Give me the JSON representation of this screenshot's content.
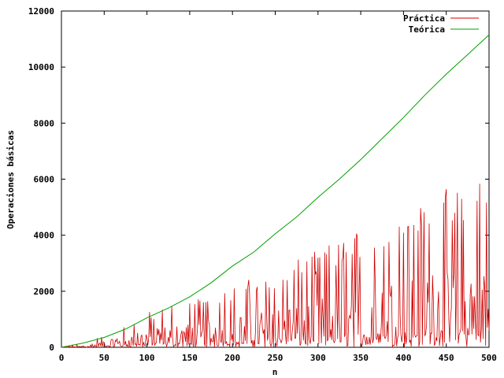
{
  "chart_data": {
    "type": "line",
    "title": "",
    "xlabel": "n",
    "ylabel": "Operaciones básicas",
    "xlim": [
      0,
      500
    ],
    "ylim": [
      0,
      12000
    ],
    "xticks": [
      "0",
      "50",
      "100",
      "150",
      "200",
      "250",
      "300",
      "350",
      "400",
      "450",
      "500"
    ],
    "yticks": [
      "0",
      "2000",
      "4000",
      "6000",
      "8000",
      "10000",
      "12000"
    ],
    "grid": false,
    "legend_position": "top-right",
    "series": [
      {
        "name": "Práctica",
        "color": "#d00000",
        "description_values": "oscillating between ~0 and a peak envelope",
        "x": [
          0,
          25,
          50,
          75,
          100,
          125,
          150,
          175,
          200,
          225,
          250,
          275,
          300,
          325,
          350,
          375,
          400,
          425,
          450,
          475,
          500
        ],
        "peak_envelope": [
          0,
          150,
          450,
          800,
          1250,
          1500,
          1700,
          1950,
          2200,
          2500,
          2800,
          3100,
          3500,
          3900,
          4300,
          4600,
          5000,
          5300,
          5700,
          5900,
          6200
        ]
      },
      {
        "name": "Teórica",
        "color": "#00a000",
        "x": [
          0,
          25,
          50,
          75,
          100,
          125,
          150,
          175,
          200,
          225,
          250,
          275,
          300,
          325,
          350,
          375,
          400,
          425,
          450,
          475,
          500
        ],
        "values": [
          0,
          150,
          350,
          650,
          1050,
          1400,
          1800,
          2300,
          2900,
          3400,
          4050,
          4650,
          5350,
          6000,
          6700,
          7450,
          8200,
          9000,
          9750,
          10450,
          11150
        ]
      }
    ]
  }
}
